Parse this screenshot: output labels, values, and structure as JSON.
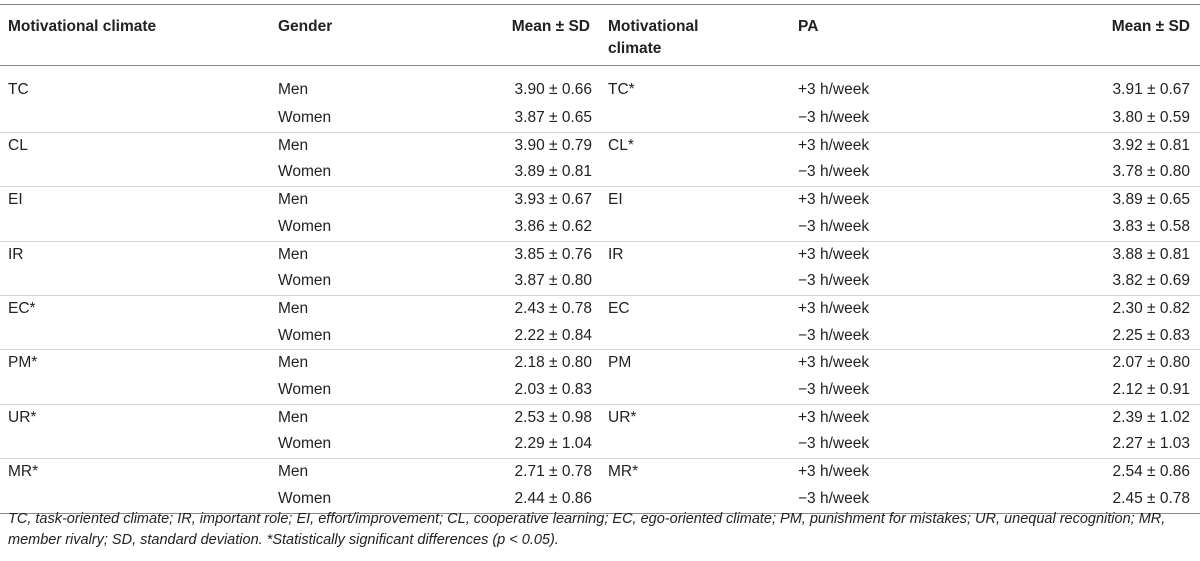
{
  "table": {
    "headers": {
      "col1": "Motivational climate",
      "col2": "Gender",
      "col3": "Mean ± SD",
      "col4_line1": "Motivational",
      "col4_line2": "climate",
      "col5": "PA",
      "col6": "Mean ± SD"
    },
    "rows": [
      [
        "TC",
        "Men",
        "3.90 ± 0.66",
        "TC*",
        "+3 h/week",
        "3.91 ± 0.67"
      ],
      [
        "",
        "Women",
        "3.87 ± 0.65",
        "",
        "−3 h/week",
        "3.80 ± 0.59"
      ],
      [
        "CL",
        "Men",
        "3.90 ± 0.79",
        "CL*",
        "+3 h/week",
        "3.92 ± 0.81"
      ],
      [
        "",
        "Women",
        "3.89 ± 0.81",
        "",
        "−3 h/week",
        "3.78 ± 0.80"
      ],
      [
        "EI",
        "Men",
        "3.93 ± 0.67",
        "EI",
        "+3 h/week",
        "3.89 ± 0.65"
      ],
      [
        "",
        "Women",
        "3.86 ± 0.62",
        "",
        "−3 h/week",
        "3.83 ± 0.58"
      ],
      [
        "IR",
        "Men",
        "3.85 ± 0.76",
        "IR",
        "+3 h/week",
        "3.88 ± 0.81"
      ],
      [
        "",
        "Women",
        "3.87 ± 0.80",
        "",
        "−3 h/week",
        "3.82 ± 0.69"
      ],
      [
        "EC*",
        "Men",
        "2.43 ± 0.78",
        "EC",
        "+3 h/week",
        "2.30 ± 0.82"
      ],
      [
        "",
        "Women",
        "2.22 ± 0.84",
        "",
        "−3 h/week",
        "2.25 ± 0.83"
      ],
      [
        "PM*",
        "Men",
        "2.18 ± 0.80",
        "PM",
        "+3 h/week",
        "2.07 ± 0.80"
      ],
      [
        "",
        "Women",
        "2.03 ± 0.83",
        "",
        "−3 h/week",
        "2.12 ± 0.91"
      ],
      [
        "UR*",
        "Men",
        "2.53 ± 0.98",
        "UR*",
        "+3 h/week",
        "2.39 ± 1.02"
      ],
      [
        "",
        "Women",
        "2.29 ± 1.04",
        "",
        "−3 h/week",
        "2.27 ± 1.03"
      ],
      [
        "MR*",
        "Men",
        "2.71 ± 0.78",
        "MR*",
        "+3 h/week",
        "2.54 ± 0.86"
      ],
      [
        "",
        "Women",
        "2.44 ± 0.86",
        "",
        "−3 h/week",
        "2.45 ± 0.78"
      ]
    ]
  },
  "footnote": "TC, task-oriented climate; IR, important role; EI, effort/improvement; CL, cooperative learning; EC, ego-oriented climate; PM, punishment for mistakes; UR, unequal recognition; MR, member rivalry; SD, standard deviation. *Statistically significant differences (p < 0.05)."
}
